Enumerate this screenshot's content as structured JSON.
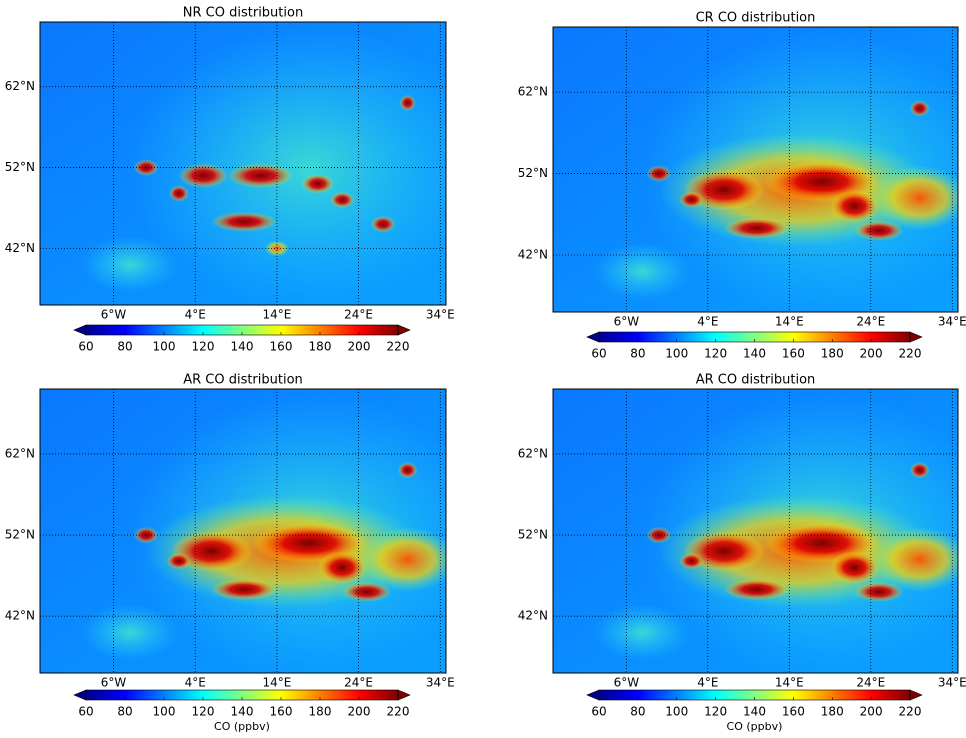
{
  "panels": [
    {
      "title": "NR CO distribution",
      "xlim": [
        -15,
        34.7
      ],
      "ylim": [
        35,
        70
      ],
      "xticks": [
        {
          "value": -6,
          "label": "6°W"
        },
        {
          "value": 4,
          "label": "4°E"
        },
        {
          "value": 14,
          "label": "14°E"
        },
        {
          "value": 24,
          "label": "24°E"
        },
        {
          "value": 34,
          "label": "34°E"
        }
      ],
      "yticks": [
        {
          "value": 42,
          "label": "42°N"
        },
        {
          "value": 52,
          "label": "52°N"
        },
        {
          "value": 62,
          "label": "62°N"
        }
      ],
      "colorbar": {
        "lim": [
          60,
          220
        ],
        "ticks": [
          60,
          80,
          100,
          120,
          140,
          160,
          180,
          200,
          220
        ]
      }
    },
    {
      "title": "CR CO distribution",
      "xlim": [
        -15,
        34.7
      ],
      "ylim": [
        35,
        70
      ],
      "xticks": [
        {
          "value": -6,
          "label": "6°W"
        },
        {
          "value": 4,
          "label": "4°E"
        },
        {
          "value": 14,
          "label": "14°E"
        },
        {
          "value": 24,
          "label": "24°E"
        },
        {
          "value": 34,
          "label": "34°E"
        }
      ],
      "yticks": [
        {
          "value": 42,
          "label": "42°N"
        },
        {
          "value": 52,
          "label": "52°N"
        },
        {
          "value": 62,
          "label": "62°N"
        }
      ],
      "colorbar": {
        "lim": [
          60,
          220
        ],
        "ticks": [
          60,
          80,
          100,
          120,
          140,
          160,
          180,
          200,
          220
        ]
      }
    },
    {
      "title": "AR CO distribution",
      "xlim": [
        -15,
        34.7
      ],
      "ylim": [
        35,
        70
      ],
      "xticks": [
        {
          "value": -6,
          "label": "6°W"
        },
        {
          "value": 4,
          "label": "4°E"
        },
        {
          "value": 14,
          "label": "14°E"
        },
        {
          "value": 24,
          "label": "24°E"
        },
        {
          "value": 34,
          "label": "34°E"
        }
      ],
      "yticks": [
        {
          "value": 42,
          "label": "42°N"
        },
        {
          "value": 52,
          "label": "52°N"
        },
        {
          "value": 62,
          "label": "62°N"
        }
      ],
      "colorbar": {
        "lim": [
          60,
          220
        ],
        "ticks": [
          60,
          80,
          100,
          120,
          140,
          160,
          180,
          200,
          220
        ],
        "label": "CO (ppbv)"
      }
    },
    {
      "title": "AR CO distribution",
      "xlim": [
        -15,
        34.7
      ],
      "ylim": [
        35,
        70
      ],
      "xticks": [
        {
          "value": -6,
          "label": "6°W"
        },
        {
          "value": 4,
          "label": "4°E"
        },
        {
          "value": 14,
          "label": "14°E"
        },
        {
          "value": 24,
          "label": "24°E"
        },
        {
          "value": 34,
          "label": "34°E"
        }
      ],
      "yticks": [
        {
          "value": 42,
          "label": "42°N"
        },
        {
          "value": 52,
          "label": "52°N"
        },
        {
          "value": 62,
          "label": "62°N"
        }
      ],
      "colorbar": {
        "lim": [
          60,
          220
        ],
        "ticks": [
          60,
          80,
          100,
          120,
          140,
          160,
          180,
          200,
          220
        ],
        "label": "CO (ppbv)"
      }
    }
  ]
}
